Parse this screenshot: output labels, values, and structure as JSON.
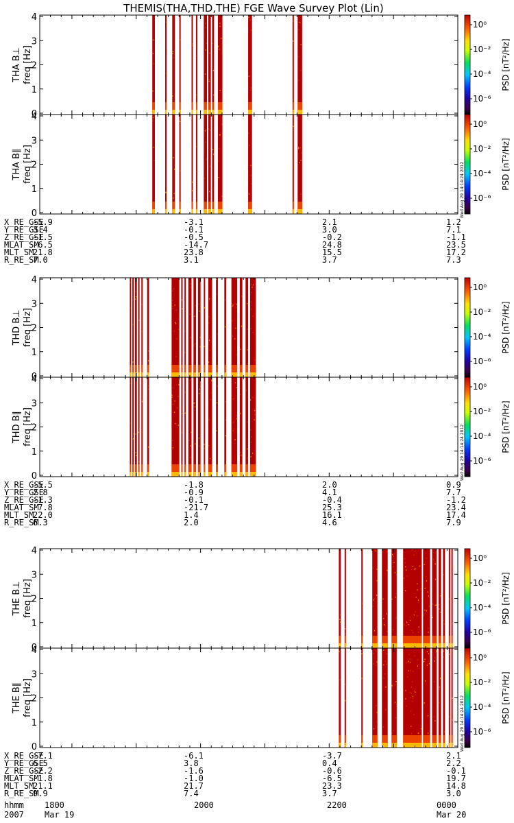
{
  "title": "THEMIS(THA,THD,THE) FGE Wave Survey Plot (Lin)",
  "stamp": "Wed Aug 29 14:14:24 2012",
  "colorbar": {
    "label": "PSD [nT²/Hz]",
    "ticks": [
      "10⁰",
      "10⁻²",
      "10⁻⁴",
      "10⁻⁶"
    ],
    "tick_exponents": [
      0,
      -2,
      -4,
      -6
    ]
  },
  "chart_data": [
    {
      "type": "heatmap",
      "probe": "THA",
      "panels": [
        {
          "ylabel_probe": "THA B⊥",
          "ylabel_unit": "freq [Hz]",
          "yticks": [
            "0",
            "1",
            "2",
            "3",
            "4"
          ],
          "ylim": [
            0,
            4
          ]
        },
        {
          "ylabel_probe": "THA B∥",
          "ylabel_unit": "freq [Hz]",
          "yticks": [
            "0",
            "1",
            "2",
            "3",
            "4"
          ],
          "ylim": [
            0,
            4
          ]
        }
      ],
      "x_range_hours": [
        17.5,
        24.0
      ],
      "signal_intervals_hours": [
        [
          19.25,
          19.29
        ],
        [
          19.45,
          19.46
        ],
        [
          19.56,
          19.6
        ],
        [
          19.67,
          19.68
        ],
        [
          19.86,
          19.88
        ],
        [
          19.93,
          19.95
        ],
        [
          20.05,
          20.1
        ],
        [
          20.12,
          20.16
        ],
        [
          20.18,
          20.21
        ],
        [
          20.27,
          20.34
        ],
        [
          20.74,
          20.8
        ],
        [
          21.43,
          21.45
        ],
        [
          21.51,
          21.58
        ]
      ],
      "ephemeris": {
        "labels": [
          "X_RE_GSE",
          "Y_RE_GSE",
          "Z_RE_GSE",
          "MLAT_SM",
          "MLT_SM",
          "R_RE_SM"
        ],
        "columns": [
          [
            "-5.9",
            "3.4",
            "-1.5",
            "-6.5",
            "21.8",
            "7.0"
          ],
          [
            "-3.1",
            "-0.1",
            "-0.5",
            "-14.7",
            "23.8",
            "3.1"
          ],
          [
            "2.1",
            "3.0",
            "-0.2",
            "24.8",
            "15.5",
            "3.7"
          ],
          [
            "1.2",
            "7.1",
            "-1.1",
            "23.5",
            "17.2",
            "7.3"
          ]
        ]
      }
    },
    {
      "type": "heatmap",
      "probe": "THD",
      "panels": [
        {
          "ylabel_probe": "THD B⊥",
          "ylabel_unit": "freq [Hz]",
          "yticks": [
            "0",
            "1",
            "2",
            "3",
            "4"
          ],
          "ylim": [
            0,
            4
          ]
        },
        {
          "ylabel_probe": "THD B∥",
          "ylabel_unit": "freq [Hz]",
          "yticks": [
            "0",
            "1",
            "2",
            "3",
            "4"
          ],
          "ylim": [
            0,
            4
          ]
        }
      ],
      "x_range_hours": [
        17.5,
        24.0
      ],
      "signal_intervals_hours": [
        [
          18.9,
          18.92
        ],
        [
          18.94,
          18.96
        ],
        [
          18.98,
          19.01
        ],
        [
          19.03,
          19.04
        ],
        [
          19.08,
          19.09
        ],
        [
          19.17,
          19.2
        ],
        [
          19.55,
          19.67
        ],
        [
          19.7,
          19.72
        ],
        [
          19.75,
          19.77
        ],
        [
          19.81,
          19.86
        ],
        [
          19.89,
          19.93
        ],
        [
          19.96,
          20.0
        ],
        [
          20.05,
          20.07
        ],
        [
          20.12,
          20.18
        ],
        [
          20.24,
          20.27
        ],
        [
          20.37,
          20.4
        ],
        [
          20.48,
          20.57
        ],
        [
          20.61,
          20.65
        ],
        [
          20.7,
          20.74
        ],
        [
          20.77,
          20.86
        ]
      ],
      "ephemeris": {
        "labels": [
          "X_RE_GSE",
          "Y_RE_GSE",
          "Z_RE_GSE",
          "MLAT_SM",
          "MLT_SM",
          "R_RE_SM"
        ],
        "columns": [
          [
            "-5.5",
            "2.8",
            "-1.3",
            "-7.8",
            "22.0",
            "6.3"
          ],
          [
            "-1.8",
            "-0.9",
            "-0.1",
            "-21.7",
            "1.4",
            "2.0"
          ],
          [
            "2.0",
            "4.1",
            "-0.4",
            "25.3",
            "16.1",
            "4.6"
          ],
          [
            "0.9",
            "7.7",
            "-1.2",
            "23.4",
            "17.4",
            "7.9"
          ]
        ]
      }
    },
    {
      "type": "heatmap",
      "probe": "THE",
      "panels": [
        {
          "ylabel_probe": "THE B⊥",
          "ylabel_unit": "freq [Hz]",
          "yticks": [
            "0",
            "1",
            "2",
            "3",
            "4"
          ],
          "ylim": [
            0,
            4
          ]
        },
        {
          "ylabel_probe": "THE B∥",
          "ylabel_unit": "freq [Hz]",
          "yticks": [
            "0",
            "1",
            "2",
            "3",
            "4"
          ],
          "ylim": [
            0,
            4
          ]
        }
      ],
      "x_range_hours": [
        17.5,
        24.0
      ],
      "signal_intervals_hours": [
        [
          22.15,
          22.18
        ],
        [
          22.24,
          22.26
        ],
        [
          22.5,
          22.52
        ],
        [
          22.67,
          22.75
        ],
        [
          22.82,
          22.91
        ],
        [
          22.97,
          23.05
        ],
        [
          23.15,
          23.44
        ],
        [
          23.46,
          23.57
        ],
        [
          23.6,
          23.67
        ],
        [
          23.7,
          23.74
        ],
        [
          23.77,
          23.8
        ],
        [
          23.86,
          23.88
        ],
        [
          23.9,
          23.92
        ]
      ],
      "ephemeris": {
        "labels": [
          "X_RE_GSE",
          "Y_RE_GSE",
          "Z_RE_GSE",
          "MLAT_SM",
          "MLT_SM",
          "R_RE_SM"
        ],
        "columns": [
          [
            "-7.1",
            "6.5",
            "-2.2",
            "-1.8",
            "21.1",
            "9.9"
          ],
          [
            "-6.1",
            "3.8",
            "-1.6",
            "-1.0",
            "21.7",
            "7.4"
          ],
          [
            "-3.7",
            "0.4",
            "-0.6",
            "-6.5",
            "23.3",
            "3.7"
          ],
          [
            "2.1",
            "2.2",
            "-0.1",
            "19.7",
            "14.8",
            "3.0"
          ]
        ]
      }
    }
  ],
  "time_axis": {
    "row1_label": "hhmm",
    "row2_label": "2007",
    "ticks": [
      "1800",
      "2000",
      "2200",
      "0000"
    ],
    "dates": [
      "Mar 19",
      "Mar 20"
    ]
  }
}
